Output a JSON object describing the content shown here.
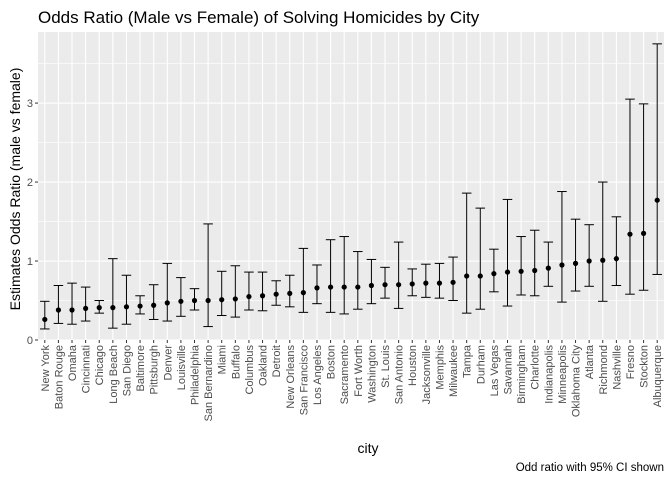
{
  "chart_data": {
    "type": "errorbar-point",
    "title": "Odds Ratio (Male vs Female) of Solving Homicides by City",
    "xlabel": "city",
    "ylabel": "Estimates Odds Ratio (male vs female)",
    "caption": "Odd ratio with 95% CI shown",
    "ylim": [
      0,
      3.9
    ],
    "yticks": [
      0,
      1,
      2,
      3
    ],
    "grid": true,
    "colors": {
      "panel": "#ebebeb",
      "grid": "#ffffff",
      "marks": "#000000"
    },
    "categories": [
      "New York",
      "Baton Rouge",
      "Omaha",
      "Cincinnati",
      "Chicago",
      "Long Beach",
      "San Diego",
      "Baltimore",
      "Pittsburgh",
      "Denver",
      "Louisville",
      "Philadelphia",
      "San Bernardino",
      "Miami",
      "Buffalo",
      "Columbus",
      "Oakland",
      "Detroit",
      "New Orleans",
      "San Francisco",
      "Los Angeles",
      "Boston",
      "Sacramento",
      "Fort Worth",
      "Washington",
      "St. Louis",
      "San Antonio",
      "Houston",
      "Jacksonville",
      "Memphis",
      "Milwaukee",
      "Tampa",
      "Durham",
      "Las Vegas",
      "Savannah",
      "Birmingham",
      "Charlotte",
      "Indianapolis",
      "Minneapolis",
      "Oklahoma City",
      "Atlanta",
      "Richmond",
      "Nashville",
      "Fresno",
      "Stockton",
      "Albuquerque"
    ],
    "estimate": [
      0.26,
      0.38,
      0.38,
      0.4,
      0.41,
      0.41,
      0.42,
      0.43,
      0.44,
      0.47,
      0.49,
      0.5,
      0.5,
      0.51,
      0.52,
      0.55,
      0.56,
      0.58,
      0.59,
      0.6,
      0.66,
      0.67,
      0.67,
      0.67,
      0.69,
      0.7,
      0.7,
      0.71,
      0.72,
      0.72,
      0.73,
      0.81,
      0.81,
      0.84,
      0.86,
      0.87,
      0.88,
      0.91,
      0.95,
      0.97,
      1.0,
      1.01,
      1.03,
      1.34,
      1.35,
      1.77
    ],
    "ci_low": [
      0.14,
      0.21,
      0.2,
      0.24,
      0.34,
      0.15,
      0.2,
      0.33,
      0.26,
      0.24,
      0.3,
      0.38,
      0.17,
      0.31,
      0.29,
      0.38,
      0.37,
      0.44,
      0.42,
      0.35,
      0.46,
      0.35,
      0.33,
      0.39,
      0.46,
      0.53,
      0.4,
      0.56,
      0.54,
      0.53,
      0.5,
      0.34,
      0.39,
      0.61,
      0.43,
      0.57,
      0.56,
      0.68,
      0.48,
      0.62,
      0.68,
      0.49,
      0.69,
      0.58,
      0.63,
      0.83
    ],
    "ci_high": [
      0.49,
      0.69,
      0.72,
      0.67,
      0.5,
      1.03,
      0.82,
      0.56,
      0.7,
      0.97,
      0.79,
      0.65,
      1.47,
      0.87,
      0.94,
      0.86,
      0.86,
      0.75,
      0.82,
      1.16,
      0.95,
      1.27,
      1.31,
      1.12,
      1.02,
      0.92,
      1.24,
      0.9,
      0.96,
      0.97,
      1.05,
      1.86,
      1.67,
      1.15,
      1.78,
      1.31,
      1.39,
      1.24,
      1.88,
      1.53,
      1.46,
      2.0,
      1.56,
      3.05,
      2.99,
      3.75
    ]
  }
}
